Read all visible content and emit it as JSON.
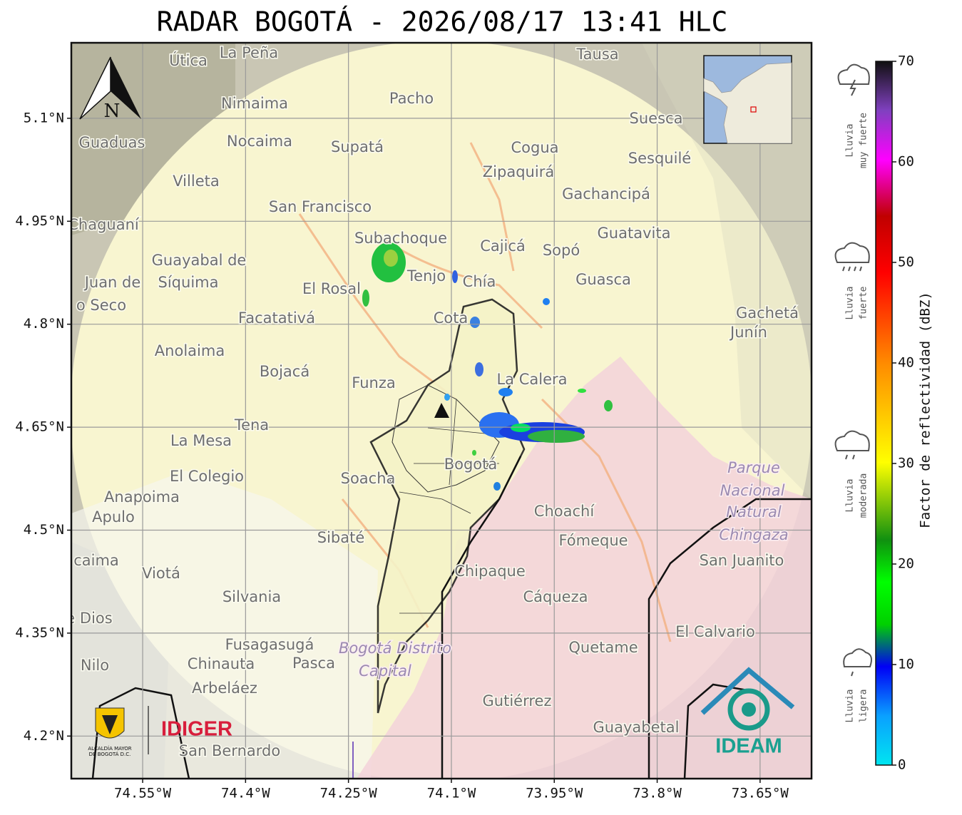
{
  "title": "RADAR BOGOTÁ - 2026/08/17 13:41 HLC",
  "map": {
    "xlim": [
      -74.654,
      -73.575
    ],
    "ylim": [
      4.138,
      5.21
    ],
    "xticks": [
      {
        "value": -74.55,
        "label": "74.55°W"
      },
      {
        "value": -74.4,
        "label": "74.4°W"
      },
      {
        "value": -74.25,
        "label": "74.25°W"
      },
      {
        "value": -74.1,
        "label": "74.1°W"
      },
      {
        "value": -73.95,
        "label": "73.95°W"
      },
      {
        "value": -73.8,
        "label": "73.8°W"
      },
      {
        "value": -73.65,
        "label": "73.65°W"
      }
    ],
    "yticks": [
      {
        "value": 5.1,
        "label": "5.1°N"
      },
      {
        "value": 4.95,
        "label": "4.95°N"
      },
      {
        "value": 4.8,
        "label": "4.8°N"
      },
      {
        "value": 4.65,
        "label": "4.65°N"
      },
      {
        "value": 4.5,
        "label": "4.5°N"
      },
      {
        "value": 4.35,
        "label": "4.35°N"
      },
      {
        "value": 4.2,
        "label": "4.2°N"
      }
    ],
    "north": "N",
    "places": [
      "La Peña",
      "Útica",
      "Tausa",
      "Pacho",
      "Nimaima",
      "Guaduas",
      "Nocaima",
      "Supatá",
      "Cogua",
      "Suesca",
      "Sesquilé",
      "Zipaquirá",
      "Villeta",
      "Gachancipá",
      "San Francisco",
      "Chaguaní",
      "Guatavita",
      "Subachoque",
      "Cajicá",
      "Sopó",
      "Guayabal de",
      "Síquima",
      "Tenjo",
      "Chía",
      "Guasca",
      "El Rosal",
      "Juan de",
      "o Seco",
      "Facatativá",
      "Cota",
      "Gachetá",
      "Junín",
      "Anolaima",
      "Bojacá",
      "Funza",
      "La Calera",
      "Tena",
      "La Mesa",
      "Bogotá",
      "El Colegio",
      "Soacha",
      "Anapoima",
      "Apulo",
      "Choachí",
      "Sibaté",
      "Fómeque",
      "San Juanito",
      "caima",
      "Viotá",
      "Chipaque",
      "Silvania",
      "Cáqueza",
      "e Dios",
      "El Calvario",
      "Fusagasugá",
      "Quetame",
      "Nilo",
      "Chinauta",
      "Pasca",
      "Arbeláez",
      "Gutiérrez",
      "Guayabetal",
      "San Bernardo"
    ],
    "areas": [
      "Parque",
      "Nacional",
      "Natural",
      "Chingaza",
      "Bogotá Distrito",
      "Capital"
    ]
  },
  "legend": {
    "label": "Factor de reflectividad (dBZ)",
    "lim": [
      0,
      70
    ],
    "ticks": [
      0,
      10,
      20,
      30,
      40,
      50,
      60,
      70
    ],
    "levels": [
      [
        "Lluvia",
        "muy fuerte"
      ],
      [
        "Lluvia",
        "fuerte"
      ],
      [
        "Lluvia",
        "moderada"
      ],
      [
        "Lluvia",
        "ligera"
      ]
    ]
  },
  "logos": {
    "alcaldia": [
      "ALCALDÍA MAYOR",
      "DE BOGOTÁ D.C."
    ],
    "idiger": "IDIGER",
    "ideam": "IDEAM"
  }
}
